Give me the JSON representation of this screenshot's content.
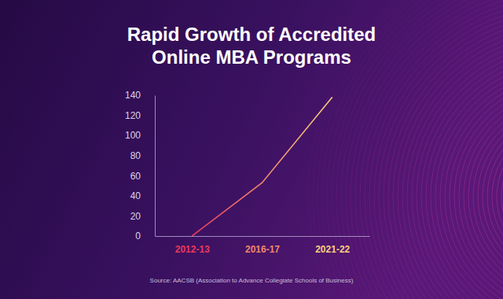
{
  "chart_data": {
    "type": "line",
    "title": "Rapid Growth of Accredited Online MBA Programs",
    "source": "Source: AACSB (Association to Advance Collegiate Schools of Business)",
    "categories": [
      "2012-13",
      "2016-17",
      "2021-22"
    ],
    "values": [
      0,
      53,
      138
    ],
    "colors": [
      "#e8395c",
      "#f0866c",
      "#f6d07c"
    ],
    "ylim": [
      0,
      140
    ],
    "yticks": [
      0,
      20,
      40,
      60,
      80,
      100,
      120,
      140
    ],
    "grid": false
  }
}
